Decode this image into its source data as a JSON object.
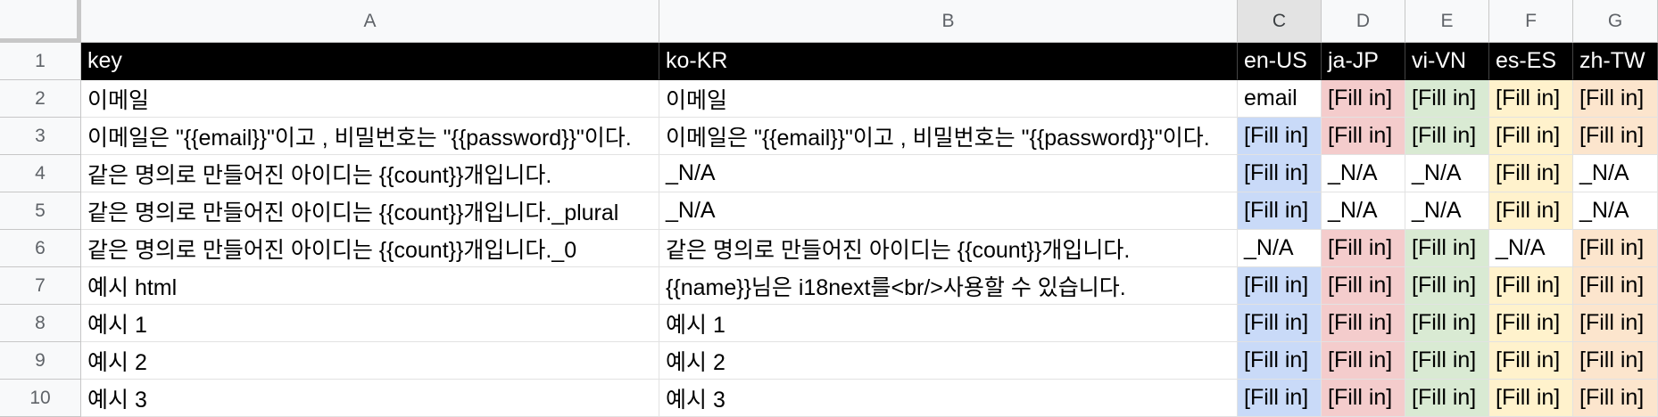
{
  "columns": [
    "A",
    "B",
    "C",
    "D",
    "E",
    "F",
    "G"
  ],
  "rows": [
    [
      "key",
      "ko-KR",
      "en-US",
      "ja-JP",
      "vi-VN",
      "es-ES",
      "zh-TW"
    ],
    [
      "이메일",
      "이메일",
      "email",
      "[Fill in]",
      "[Fill in]",
      "[Fill in]",
      "[Fill in]"
    ],
    [
      "이메일은 \"{{email}}\"이고 , 비밀번호는 \"{{password}}\"이다.",
      "이메일은 \"{{email}}\"이고 , 비밀번호는 \"{{password}}\"이다.",
      "[Fill in]",
      "[Fill in]",
      "[Fill in]",
      "[Fill in]",
      "[Fill in]"
    ],
    [
      "같은 명의로 만들어진 아이디는 {{count}}개입니다.",
      "_N/A",
      "[Fill in]",
      "_N/A",
      "_N/A",
      "[Fill in]",
      "_N/A"
    ],
    [
      "같은 명의로 만들어진 아이디는 {{count}}개입니다._plural",
      "_N/A",
      "[Fill in]",
      "_N/A",
      "_N/A",
      "[Fill in]",
      "_N/A"
    ],
    [
      "같은 명의로 만들어진 아이디는 {{count}}개입니다._0",
      "같은 명의로 만들어진 아이디는 {{count}}개입니다.",
      "_N/A",
      "[Fill in]",
      "[Fill in]",
      "_N/A",
      "[Fill in]"
    ],
    [
      "예시 html",
      "{{name}}님은 i18next를<br/>사용할 수 있습니다.",
      "[Fill in]",
      "[Fill in]",
      "[Fill in]",
      "[Fill in]",
      "[Fill in]"
    ],
    [
      "예시 1",
      "예시 1",
      "[Fill in]",
      "[Fill in]",
      "[Fill in]",
      "[Fill in]",
      "[Fill in]"
    ],
    [
      "예시 2",
      "예시 2",
      "[Fill in]",
      "[Fill in]",
      "[Fill in]",
      "[Fill in]",
      "[Fill in]"
    ],
    [
      "예시 3",
      "예시 3",
      "[Fill in]",
      "[Fill in]",
      "[Fill in]",
      "[Fill in]",
      "[Fill in]"
    ]
  ],
  "row_numbers": [
    "1",
    "2",
    "3",
    "4",
    "5",
    "6",
    "7",
    "8",
    "9",
    "10"
  ],
  "fills": {
    "1": [
      null,
      null,
      null,
      "red",
      "green",
      "yellow",
      "orange"
    ],
    "2": [
      null,
      null,
      "blue",
      "red",
      "green",
      "yellow",
      "orange"
    ],
    "3": [
      null,
      null,
      "blue",
      null,
      null,
      "yellow",
      null
    ],
    "4": [
      null,
      null,
      "blue",
      null,
      null,
      "yellow",
      null
    ],
    "5": [
      null,
      null,
      null,
      "red",
      "green",
      null,
      "orange"
    ],
    "6": [
      null,
      null,
      "blue",
      "red",
      "green",
      "yellow",
      "orange"
    ],
    "7": [
      null,
      null,
      "blue",
      "red",
      "green",
      "yellow",
      "orange"
    ],
    "8": [
      null,
      null,
      "blue",
      "red",
      "green",
      "yellow",
      "orange"
    ],
    "9": [
      null,
      null,
      "blue",
      "red",
      "green",
      "yellow",
      "orange"
    ]
  },
  "colors": {
    "blue": "#c9daf8",
    "red": "#f4cccc",
    "green": "#d9ead3",
    "yellow": "#fff2cc",
    "orange": "#fce5cd",
    "header_bg": "#000000"
  },
  "selected_column": "C"
}
